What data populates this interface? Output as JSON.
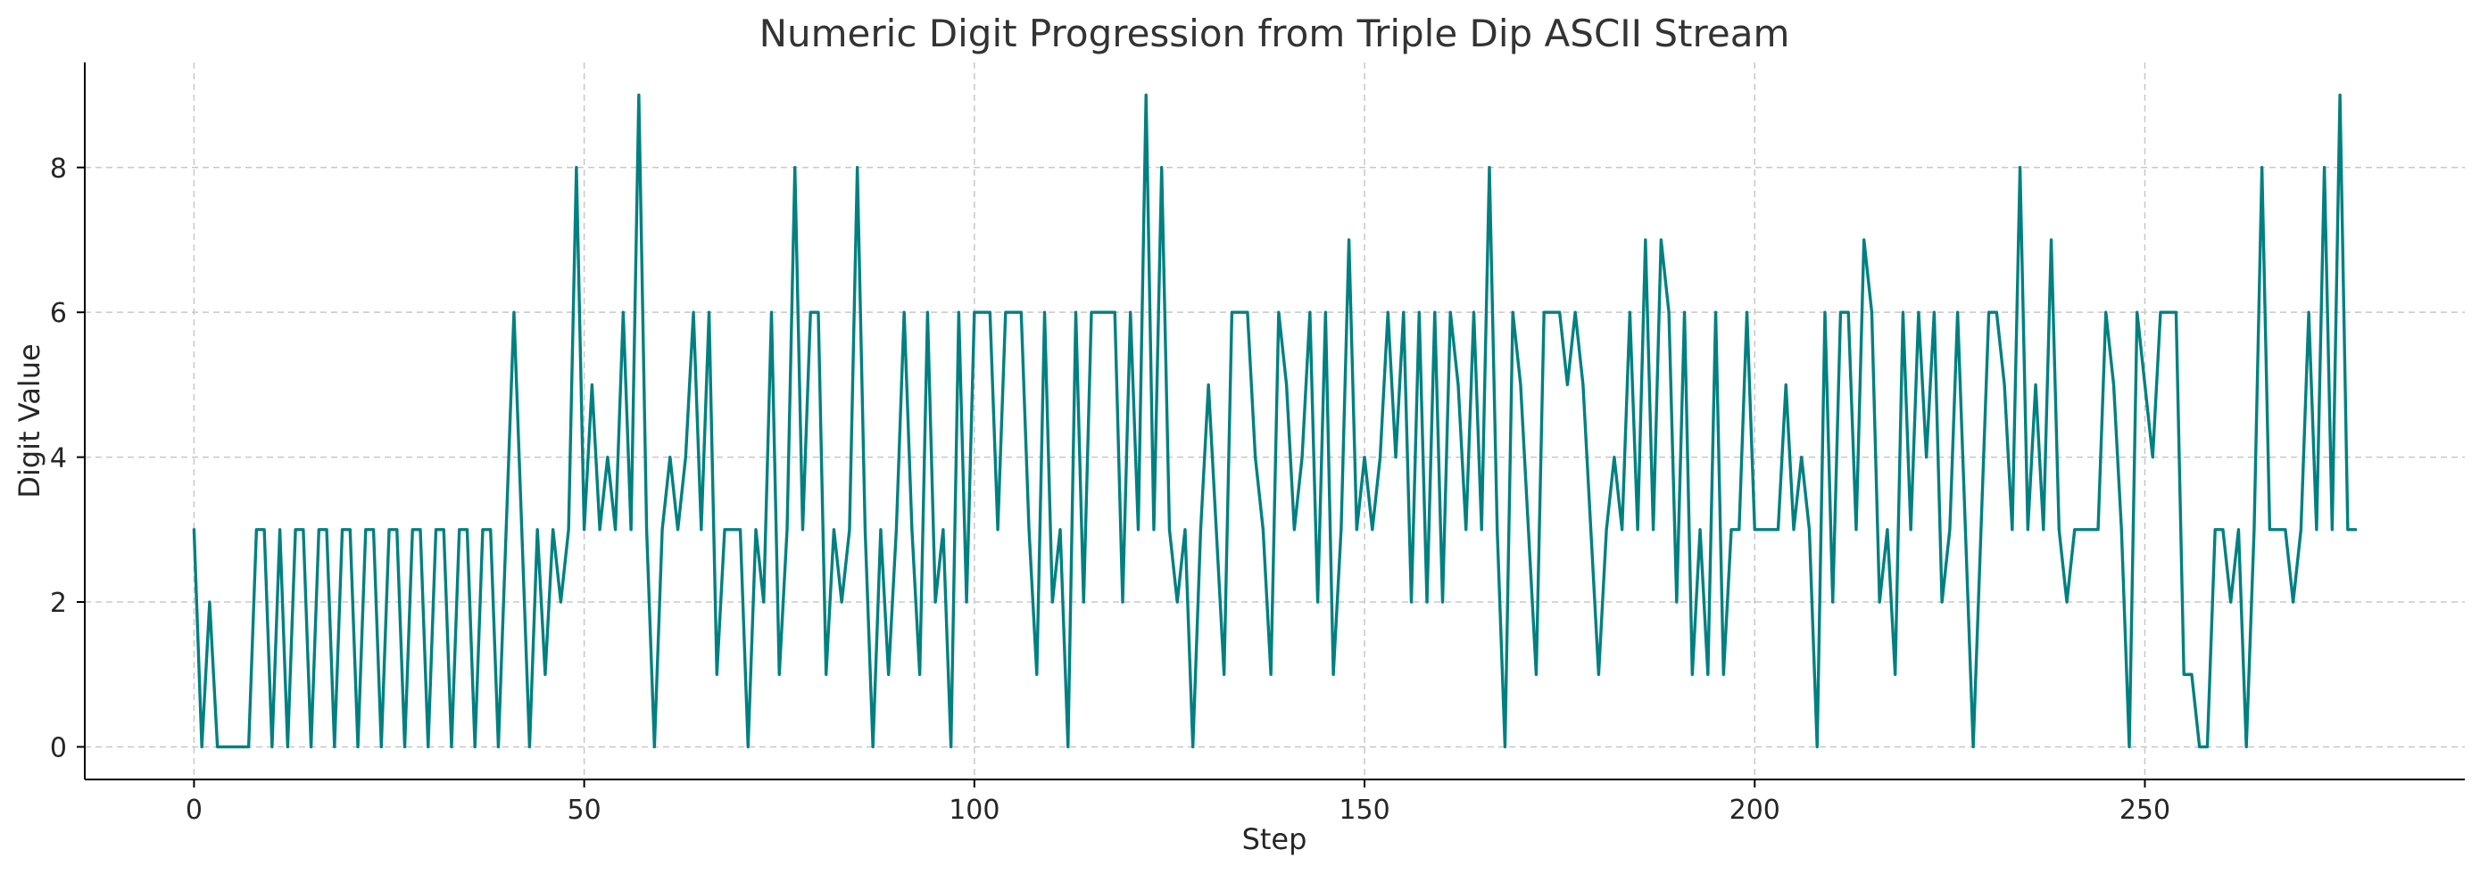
{
  "chart_data": {
    "type": "line",
    "title": "Numeric Digit Progression from Triple Dip ASCII Stream",
    "xlabel": "Step",
    "ylabel": "Digit Value",
    "xlim": [
      -14,
      291
    ],
    "ylim": [
      -0.45,
      9.45
    ],
    "xticks": [
      0,
      50,
      100,
      150,
      200,
      250
    ],
    "yticks": [
      0,
      2,
      4,
      6,
      8
    ],
    "grid": true,
    "series": [
      {
        "color": "#008080",
        "values": [
          3,
          0,
          2,
          0,
          0,
          0,
          0,
          0,
          3,
          3,
          0,
          3,
          0,
          3,
          3,
          0,
          3,
          3,
          0,
          3,
          3,
          0,
          3,
          3,
          0,
          3,
          3,
          0,
          3,
          3,
          0,
          3,
          3,
          0,
          3,
          3,
          0,
          3,
          3,
          0,
          3,
          6,
          3,
          0,
          3,
          1,
          3,
          2,
          3,
          8,
          3,
          5,
          3,
          4,
          3,
          6,
          3,
          9,
          3,
          0,
          3,
          4,
          3,
          4,
          6,
          3,
          6,
          1,
          3,
          3,
          3,
          0,
          3,
          2,
          6,
          1,
          3,
          8,
          3,
          6,
          6,
          1,
          3,
          2,
          3,
          8,
          3,
          0,
          3,
          1,
          3,
          6,
          3,
          1,
          6,
          2,
          3,
          0,
          6,
          2,
          6,
          6,
          6,
          3,
          6,
          6,
          6,
          3,
          1,
          6,
          2,
          3,
          0,
          6,
          2,
          6,
          6,
          6,
          6,
          2,
          6,
          3,
          9,
          3,
          8,
          3,
          2,
          3,
          0,
          3,
          5,
          3,
          1,
          6,
          6,
          6,
          4,
          3,
          1,
          6,
          5,
          3,
          4,
          6,
          2,
          6,
          1,
          3,
          7,
          3,
          4,
          3,
          4,
          6,
          4,
          6,
          2,
          6,
          2,
          6,
          2,
          6,
          5,
          3,
          6,
          3,
          8,
          3,
          0,
          6,
          5,
          3,
          1,
          6,
          6,
          6,
          5,
          6,
          5,
          3,
          1,
          3,
          4,
          3,
          6,
          3,
          7,
          3,
          7,
          6,
          2,
          6,
          1,
          3,
          1,
          6,
          1,
          3,
          3,
          6,
          3,
          3,
          3,
          3,
          5,
          3,
          4,
          3,
          0,
          6,
          2,
          6,
          6,
          3,
          7,
          6,
          2,
          3,
          1,
          6,
          3,
          6,
          4,
          6,
          2,
          3,
          6,
          3,
          0,
          3,
          6,
          6,
          5,
          3,
          8,
          3,
          5,
          3,
          7,
          3,
          2,
          3,
          3,
          3,
          3,
          6,
          5,
          3,
          0,
          6,
          5,
          4,
          6,
          6,
          6,
          1,
          1,
          0,
          0,
          3,
          3,
          2,
          3,
          0,
          3,
          8,
          3,
          3,
          3,
          2,
          3,
          6,
          3,
          8,
          3,
          9,
          3,
          3
        ]
      }
    ]
  }
}
